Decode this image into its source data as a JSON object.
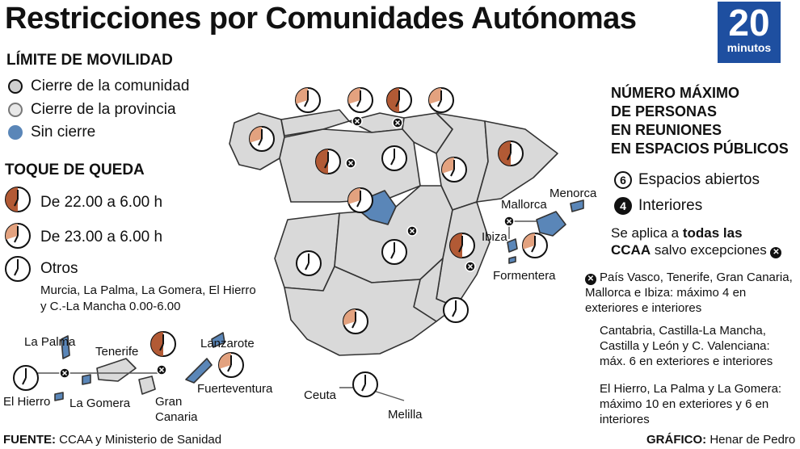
{
  "title": "Restricciones por Comunidades Autónomas",
  "logo": {
    "number": "20",
    "sub": "minutos"
  },
  "movilidad": {
    "heading": "LÍMITE DE MOVILIDAD",
    "items": [
      "Cierre de la comunidad",
      "Cierre de la provincia",
      "Sin cierre"
    ]
  },
  "toque": {
    "heading": "TOQUE DE QUEDA",
    "items": [
      "De 22.00 a 6.00 h",
      "De 23.00 a 6.00 h",
      "Otros"
    ],
    "note_line1": "Murcia, La Palma, La Gomera, El Hierro",
    "note_line2": "y C.-La Mancha 0.00-6.00"
  },
  "reuniones": {
    "heading_lines": [
      "NÚMERO MÁXIMO",
      "DE PERSONAS",
      "EN REUNIONES",
      "EN ESPACIOS PÚBLICOS"
    ],
    "abiertos_num": "6",
    "abiertos": "Espacios abiertos",
    "interiores_num": "4",
    "interiores": "Interiores",
    "aplica_1": "Se aplica a ",
    "aplica_bold": "todas las",
    "aplica_2_bold": "CCAA",
    "aplica_2": " salvo excepciones",
    "excepcion_1": "País Vasco, Tenerife, Gran Canaria, Mallorca e Ibiza: máximo 4 en exteriores e interiores",
    "excepcion_2": "Cantabria, Castilla-La Mancha, Castilla y León y C. Valenciana: máx. 6 en exteriores e interiores",
    "excepcion_3": "El Hierro, La Palma y La Gomera: máximo 10 en exteriores y 6 en interiores"
  },
  "places": {
    "mallorca": "Mallorca",
    "menorca": "Menorca",
    "ibiza": "Ibiza",
    "formentera": "Formentera",
    "ceuta": "Ceuta",
    "melilla": "Melilla",
    "la_palma": "La Palma",
    "tenerife": "Tenerife",
    "lanzarote": "Lanzarote",
    "fuerteventura": "Fuerteventura",
    "el_hierro": "El Hierro",
    "la_gomera": "La Gomera",
    "gran_canaria": "Gran Canaria"
  },
  "footer": {
    "fuente_label": "FUENTE:",
    "fuente": "CCAA y Ministerio de Sanidad",
    "grafico_label": "GRÁFICO:",
    "grafico": "Henar de Pedro"
  },
  "colors": {
    "map_fill": "#d9d9d9",
    "sin_cierre": "#5a86b8",
    "clock_22": "#b25a35",
    "clock_23": "#e3a27f",
    "logo": "#1e4fa0"
  }
}
